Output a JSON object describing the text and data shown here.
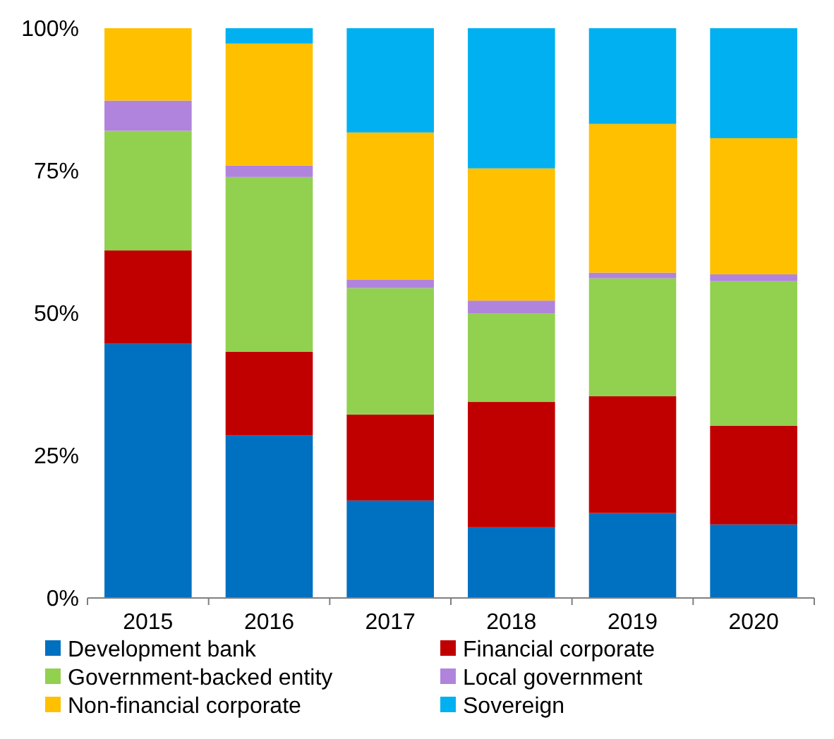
{
  "chart_data": {
    "type": "bar",
    "stacked": true,
    "categories": [
      "2015",
      "2016",
      "2017",
      "2018",
      "2019",
      "2020"
    ],
    "series": [
      {
        "name": "Development bank",
        "color": "#0070c0",
        "values": [
          44.6,
          28.5,
          17.1,
          12.4,
          14.9,
          12.9
        ]
      },
      {
        "name": "Financial corporate",
        "color": "#c00000",
        "values": [
          16.4,
          14.7,
          15.1,
          22,
          20.5,
          17.3
        ]
      },
      {
        "name": "Government-backed entity",
        "color": "#92d050",
        "values": [
          21,
          30.7,
          22.2,
          15.6,
          20.7,
          25.4
        ]
      },
      {
        "name": "Local government",
        "color": "#b084dc",
        "values": [
          5.3,
          2,
          1.5,
          2.2,
          1,
          1.2
        ]
      },
      {
        "name": "Non-financial corporate",
        "color": "#ffc000",
        "values": [
          12.7,
          21.4,
          25.8,
          23.2,
          26.1,
          23.9
        ]
      },
      {
        "name": "Sovereign",
        "color": "#00b0f0",
        "values": [
          0,
          2.7,
          18.3,
          24.6,
          16.8,
          19.3
        ]
      }
    ],
    "ylim": [
      0,
      100
    ],
    "yticks": [
      {
        "value": 0,
        "label": "0%"
      },
      {
        "value": 25,
        "label": "25%"
      },
      {
        "value": 50,
        "label": "50%"
      },
      {
        "value": 75,
        "label": "75%"
      },
      {
        "value": 100,
        "label": "100%"
      }
    ],
    "grid": false,
    "legend": "bottom"
  }
}
